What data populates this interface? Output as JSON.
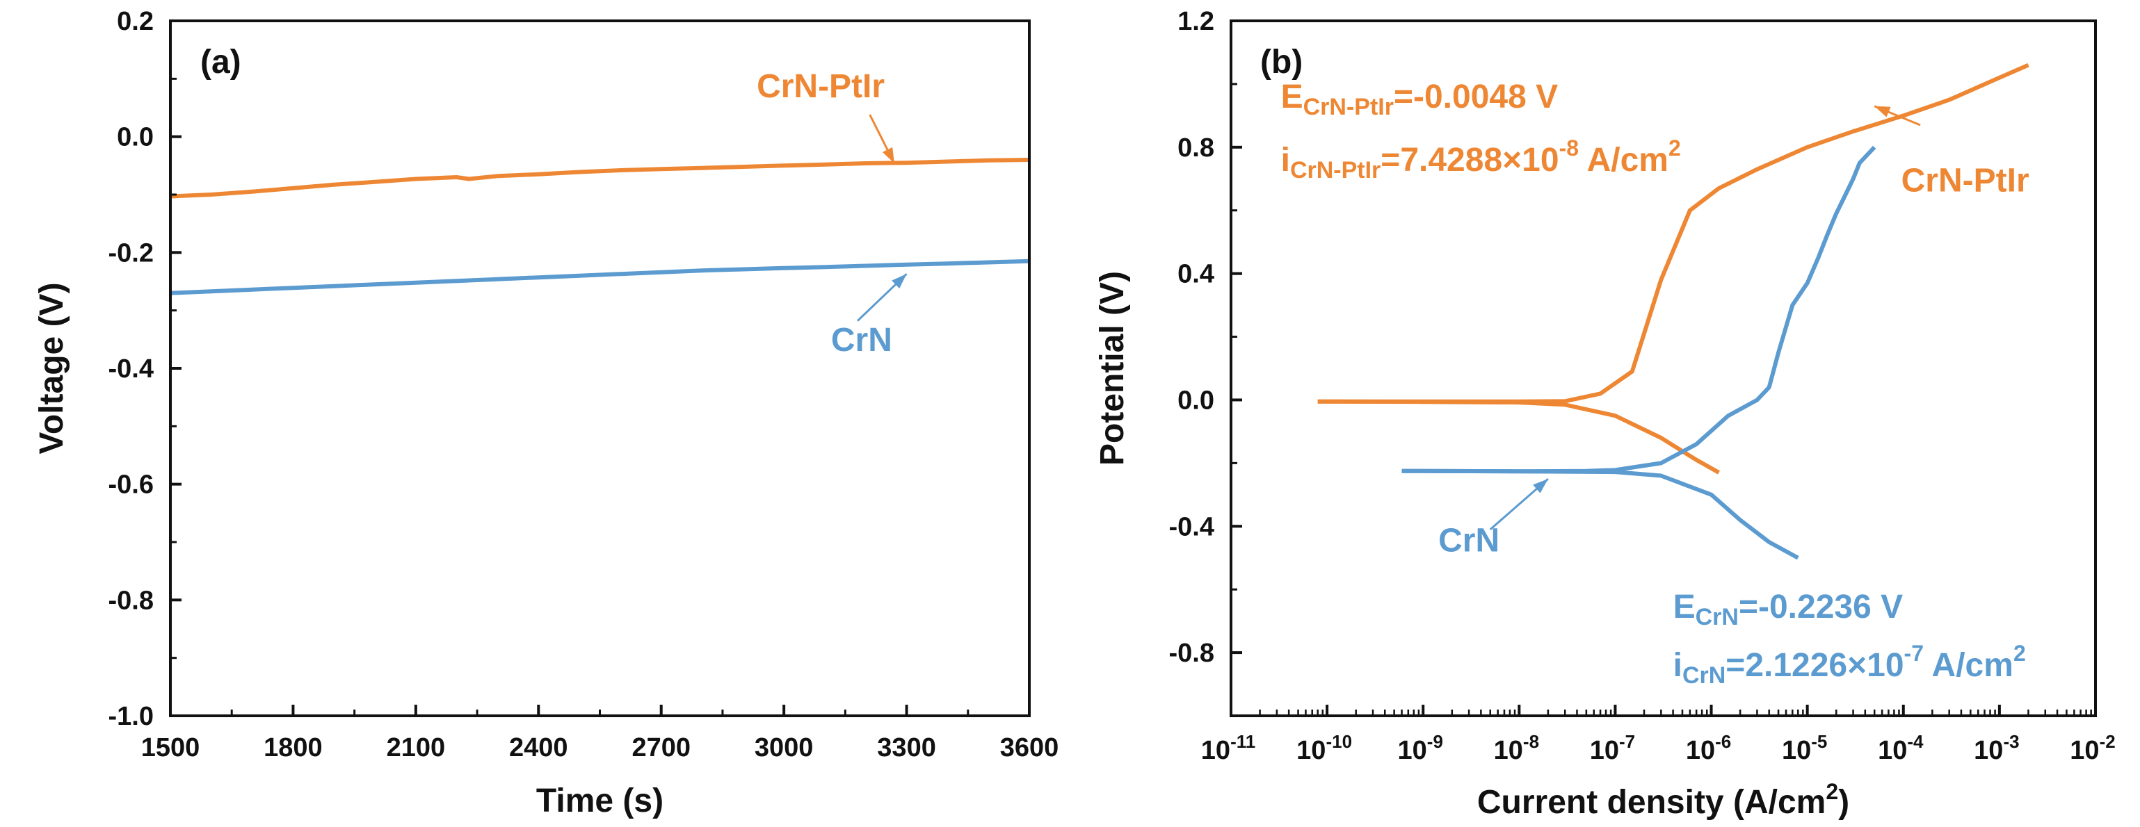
{
  "colors": {
    "crn_ptir": "#EE8734",
    "crn": "#5B9BD0",
    "axis": "#111111"
  },
  "chart_data": [
    {
      "id": "a",
      "type": "line",
      "panel_label": "(a)",
      "xlabel": "Time (s)",
      "ylabel": "Voltage (V)",
      "xlim": [
        1500,
        3600
      ],
      "ylim": [
        -1.0,
        0.2
      ],
      "xticks": [
        1500,
        1800,
        2100,
        2400,
        2700,
        3000,
        3300,
        3600
      ],
      "yticks": [
        -1.0,
        -0.8,
        -0.6,
        -0.4,
        -0.2,
        0.0,
        0.2
      ],
      "xtick_labels": [
        "1500",
        "1800",
        "2100",
        "2400",
        "2700",
        "3000",
        "3300",
        "3600"
      ],
      "ytick_labels": [
        "-1.0",
        "-0.8",
        "-0.6",
        "-0.4",
        "-0.2",
        "0.0",
        "0.2"
      ],
      "series": [
        {
          "name": "CrN-PtIr",
          "label_text": "CrN-PtIr",
          "x": [
            1500,
            1600,
            1700,
            1800,
            1900,
            2000,
            2100,
            2200,
            2230,
            2300,
            2400,
            2500,
            2600,
            2700,
            2800,
            2900,
            3000,
            3100,
            3200,
            3300,
            3400,
            3500,
            3600
          ],
          "y": [
            -0.103,
            -0.1,
            -0.095,
            -0.089,
            -0.083,
            -0.078,
            -0.073,
            -0.07,
            -0.073,
            -0.068,
            -0.065,
            -0.061,
            -0.058,
            -0.056,
            -0.054,
            -0.052,
            -0.05,
            -0.048,
            -0.046,
            -0.045,
            -0.043,
            -0.041,
            -0.04
          ],
          "label_at": [
            3090,
            0.068
          ],
          "arrow": [
            [
              3210,
              0.038
            ],
            [
              3270,
              -0.046
            ]
          ]
        },
        {
          "name": "CrN",
          "label_text": "CrN",
          "x": [
            1500,
            1600,
            1700,
            1800,
            1900,
            2000,
            2100,
            2200,
            2300,
            2400,
            2500,
            2600,
            2700,
            2800,
            2900,
            3000,
            3100,
            3200,
            3300,
            3400,
            3500,
            3600
          ],
          "y": [
            -0.27,
            -0.267,
            -0.264,
            -0.261,
            -0.258,
            -0.255,
            -0.252,
            -0.249,
            -0.246,
            -0.243,
            -0.24,
            -0.237,
            -0.234,
            -0.231,
            -0.229,
            -0.227,
            -0.225,
            -0.223,
            -0.221,
            -0.219,
            -0.217,
            -0.215
          ],
          "label_at": [
            3190,
            -0.37
          ],
          "arrow": [
            [
              3180,
              -0.318
            ],
            [
              3300,
              -0.237
            ]
          ]
        }
      ]
    },
    {
      "id": "b",
      "type": "line",
      "panel_label": "(b)",
      "xlabel_main": "Current density (A/cm",
      "xlabel_sup": "2",
      "xlabel_end": ")",
      "ylabel": "Potential (V)",
      "xscale": "log",
      "xlim": [
        1e-11,
        0.01
      ],
      "ylim": [
        -1.0,
        1.2
      ],
      "xticks_exp": [
        -11,
        -10,
        -9,
        -8,
        -7,
        -6,
        -5,
        -4,
        -3,
        -2
      ],
      "xtick_base": "10",
      "xtick_sups": [
        "-11",
        "-10",
        "-9",
        "-8",
        "-7",
        "-6",
        "-5",
        "-4",
        "-3",
        "-2"
      ],
      "yticks": [
        -0.8,
        -0.4,
        0.0,
        0.4,
        0.8,
        1.2
      ],
      "ytick_labels": [
        "-0.8",
        "-0.4",
        "0.0",
        "0.4",
        "0.8",
        "1.2"
      ],
      "series": [
        {
          "name": "CrN-PtIr",
          "label_text": "CrN-PtIr",
          "x": [
            8e-11,
            1e-09,
            1e-08,
            3e-08,
            7e-08,
            1.5e-07,
            3e-07,
            6e-07,
            1.2e-06,
            3e-06,
            1e-05,
            3e-05,
            0.0001,
            0.0003,
            0.001,
            0.002,
            8e-11,
            1e-09,
            1e-08,
            3e-08,
            1e-07,
            3e-07,
            7e-07,
            1.2e-06
          ],
          "y": [
            -0.005,
            -0.005,
            -0.005,
            -0.004,
            0.02,
            0.09,
            0.38,
            0.6,
            0.67,
            0.73,
            0.8,
            0.85,
            0.9,
            0.95,
            1.02,
            1.06,
            -0.005,
            -0.006,
            -0.008,
            -0.015,
            -0.05,
            -0.12,
            -0.19,
            -0.23
          ],
          "segments": [
            [
              0,
              16
            ],
            [
              16,
              24
            ]
          ],
          "label_at": [
            0.00044,
            0.66
          ],
          "arrow": [
            [
              0.00015,
              0.87
            ],
            [
              5e-05,
              0.93
            ]
          ]
        },
        {
          "name": "CrN",
          "label_text": "CrN",
          "x": [
            6e-10,
            1e-09,
            1e-08,
            5e-08,
            1e-07,
            3e-07,
            7e-07,
            1.5e-06,
            3e-06,
            4e-06,
            5e-06,
            7e-06,
            1e-05,
            1.3e-05,
            1.6e-05,
            2e-05,
            2.5e-05,
            3e-05,
            3.5e-05,
            5e-05,
            6e-10,
            1e-08,
            1e-07,
            3e-07,
            1e-06,
            2e-06,
            4e-06,
            8e-06
          ],
          "y": [
            -0.225,
            -0.225,
            -0.226,
            -0.225,
            -0.222,
            -0.2,
            -0.14,
            -0.05,
            0.0,
            0.04,
            0.15,
            0.3,
            0.37,
            0.45,
            0.52,
            0.59,
            0.65,
            0.7,
            0.75,
            0.8,
            -0.225,
            -0.226,
            -0.228,
            -0.24,
            -0.3,
            -0.38,
            -0.45,
            -0.5
          ],
          "segments": [
            [
              0,
              20
            ],
            [
              20,
              28
            ]
          ],
          "label_at": [
            3e-09,
            -0.48
          ],
          "arrow": [
            [
              5e-09,
              -0.41
            ],
            [
              2e-08,
              -0.25
            ]
          ]
        }
      ],
      "annotations": [
        {
          "id": "e-ptir",
          "color_key": "crn_ptir",
          "main": "E",
          "sub": "CrN-PtIr",
          "rest": "=-0.0048 V",
          "sup": "",
          "tail": "",
          "at": [
            3.3e-11,
            0.925
          ]
        },
        {
          "id": "i-ptir",
          "color_key": "crn_ptir",
          "main": "i",
          "sub": "CrN-PtIr",
          "rest": "=7.4288×10",
          "sup": "-8",
          "tail": " A/cm",
          "sup2": "2",
          "at": [
            3.3e-11,
            0.725
          ]
        },
        {
          "id": "e-crn",
          "color_key": "crn",
          "main": "E",
          "sub": "CrN",
          "rest": "=-0.2236 V",
          "sup": "",
          "tail": "",
          "at": [
            4e-07,
            -0.69
          ]
        },
        {
          "id": "i-crn",
          "color_key": "crn",
          "main": "i",
          "sub": "CrN",
          "rest": "=2.1226×10",
          "sup": "-7",
          "tail": " A/cm",
          "sup2": "2",
          "at": [
            4e-07,
            -0.875
          ]
        }
      ]
    }
  ]
}
